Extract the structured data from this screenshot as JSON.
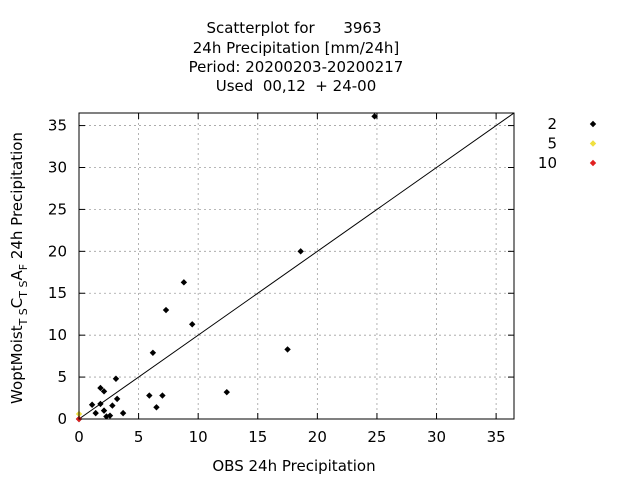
{
  "chart_data": {
    "type": "scatter",
    "title_lines": [
      "Scatterplot for      3963",
      "24h Precipitation [mm/24h]",
      "Period: 20200203-20200217",
      "Used  00,12  + 24-00"
    ],
    "xlabel": "OBS 24h Precipitation",
    "ylabel": {
      "main": "WoptMoist",
      "sub1": "T S",
      "mid": "C",
      "sub2": "T S",
      "end": "A",
      "sub3": "F",
      "tail": " 24h Precipitation"
    },
    "xlim": [
      0,
      36.5
    ],
    "ylim": [
      0,
      36.5
    ],
    "xticks": [
      0,
      5,
      10,
      15,
      20,
      25,
      30,
      35
    ],
    "yticks": [
      0,
      5,
      10,
      15,
      20,
      25,
      30,
      35
    ],
    "grid": true,
    "diagonal_line": true,
    "legend_position": "right",
    "series": [
      {
        "name": "2",
        "color": "#000000",
        "points": [
          [
            1.1,
            1.7
          ],
          [
            1.4,
            0.7
          ],
          [
            1.8,
            1.8
          ],
          [
            1.8,
            3.7
          ],
          [
            2.1,
            3.3
          ],
          [
            2.1,
            1.0
          ],
          [
            2.3,
            0.3
          ],
          [
            2.6,
            0.4
          ],
          [
            2.8,
            1.6
          ],
          [
            3.1,
            4.8
          ],
          [
            3.2,
            2.4
          ],
          [
            3.7,
            0.7
          ],
          [
            5.9,
            2.8
          ],
          [
            6.2,
            7.9
          ],
          [
            6.5,
            1.4
          ],
          [
            7.0,
            2.8
          ],
          [
            7.3,
            13.0
          ],
          [
            8.8,
            16.3
          ],
          [
            9.5,
            11.3
          ],
          [
            12.4,
            3.2
          ],
          [
            17.5,
            8.3
          ],
          [
            18.6,
            20.0
          ],
          [
            24.8,
            36.1
          ],
          [
            0.0,
            0.0
          ]
        ]
      },
      {
        "name": "5",
        "color": "#f0e040",
        "points": [
          [
            0.0,
            0.6
          ]
        ]
      },
      {
        "name": "10",
        "color": "#e02020",
        "points": [
          [
            0.0,
            0.0
          ]
        ]
      }
    ]
  }
}
